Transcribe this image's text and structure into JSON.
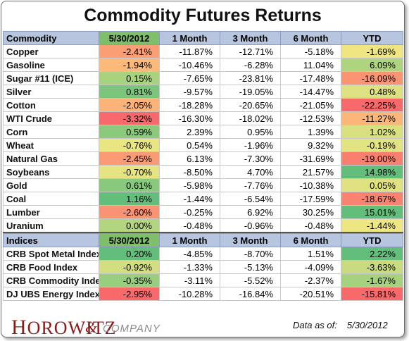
{
  "title": "Commodity Futures Returns",
  "commodity_header": [
    "Commodity",
    "5/30/2012",
    "1 Month",
    "3 Month",
    "6 Month",
    "YTD"
  ],
  "commodities": [
    {
      "name": "Copper",
      "values": [
        "-2.41%",
        "-11.87%",
        "-12.71%",
        "-5.18%",
        "-1.69%"
      ]
    },
    {
      "name": "Gasoline",
      "values": [
        "-1.94%",
        "-10.46%",
        "-6.28%",
        "11.04%",
        "6.09%"
      ]
    },
    {
      "name": "Sugar #11 (ICE)",
      "values": [
        "0.15%",
        "-7.65%",
        "-23.81%",
        "-17.48%",
        "-16.09%"
      ]
    },
    {
      "name": "Silver",
      "values": [
        "0.81%",
        "-9.57%",
        "-19.05%",
        "-14.47%",
        "0.48%"
      ]
    },
    {
      "name": "Cotton",
      "values": [
        "-2.05%",
        "-18.28%",
        "-20.65%",
        "-21.05%",
        "-22.25%"
      ]
    },
    {
      "name": "WTI Crude",
      "values": [
        "-3.32%",
        "-16.30%",
        "-18.02%",
        "-12.53%",
        "-11.27%"
      ]
    },
    {
      "name": "Corn",
      "values": [
        "0.59%",
        "2.39%",
        "0.95%",
        "1.39%",
        "1.02%"
      ]
    },
    {
      "name": "Wheat",
      "values": [
        "-0.76%",
        "0.54%",
        "-1.96%",
        "9.32%",
        "-0.19%"
      ]
    },
    {
      "name": "Natural Gas",
      "values": [
        "-2.45%",
        "6.13%",
        "-7.30%",
        "-31.69%",
        "-19.00%"
      ]
    },
    {
      "name": "Soybeans",
      "values": [
        "-0.70%",
        "-8.50%",
        "4.70%",
        "21.57%",
        "14.98%"
      ]
    },
    {
      "name": "Gold",
      "values": [
        "0.61%",
        "-5.98%",
        "-7.76%",
        "-10.38%",
        "0.05%"
      ]
    },
    {
      "name": "Coal",
      "values": [
        "1.16%",
        "-1.44%",
        "-6.54%",
        "-17.59%",
        "-18.67%"
      ]
    },
    {
      "name": "Lumber",
      "values": [
        "-2.60%",
        "-0.25%",
        "6.92%",
        "30.25%",
        "15.01%"
      ]
    },
    {
      "name": "Uranium",
      "values": [
        "0.00%",
        "-0.48%",
        "-0.96%",
        "-0.48%",
        "-1.44%"
      ]
    }
  ],
  "indices_header": [
    "Indices",
    "5/30/2012",
    "1 Month",
    "3 Month",
    "6 Month",
    "YTD"
  ],
  "indices": [
    {
      "name": "CRB Spot Metal Index",
      "values": [
        "0.20%",
        "-4.85%",
        "-8.70%",
        "1.51%",
        "2.22%"
      ]
    },
    {
      "name": "CRB Food Index",
      "values": [
        "-0.92%",
        "-1.33%",
        "-5.13%",
        "-4.09%",
        "-3.63%"
      ]
    },
    {
      "name": "CRB Commodity Index",
      "values": [
        "-0.35%",
        "-3.11%",
        "-5.52%",
        "-2.37%",
        "-1.67%"
      ]
    },
    {
      "name": "DJ UBS Energy Index",
      "values": [
        "-2.95%",
        "-10.28%",
        "-16.84%",
        "-20.51%",
        "-15.81%"
      ]
    }
  ],
  "logo": {
    "main_first": "H",
    "main_rest": "OROWITZ",
    "amp": "&",
    "sub": "COMPANY"
  },
  "as_of_label": "Data as of:",
  "as_of_value": "5/30/2012",
  "colors": {
    "header_bg": "#b7c5de",
    "date_header_bg": "#7fbf6b",
    "negative_strong": "#f08070",
    "positive_strong": "#63be7b",
    "neutral": "#ffeb84"
  }
}
